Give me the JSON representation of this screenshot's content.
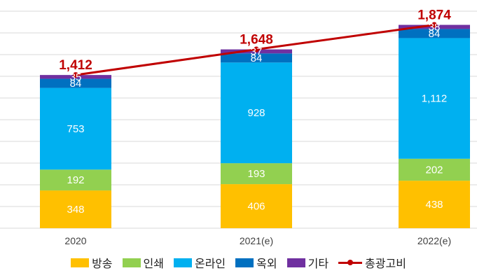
{
  "chart_data": {
    "type": "bar",
    "stacked": true,
    "categories": [
      "2020",
      "2021(e)",
      "2022(e)"
    ],
    "series": [
      {
        "name": "방송",
        "values": [
          348,
          406,
          438
        ],
        "color": "#FFC000"
      },
      {
        "name": "인쇄",
        "values": [
          192,
          193,
          202
        ],
        "color": "#92D050"
      },
      {
        "name": "온라인",
        "values": [
          753,
          928,
          1112
        ],
        "color": "#00B0F0"
      },
      {
        "name": "옥외",
        "values": [
          84,
          84,
          84
        ],
        "color": "#0070C0"
      },
      {
        "name": "기타",
        "values": [
          35,
          37,
          38
        ],
        "color": "#7030A0"
      }
    ],
    "segment_labels": [
      [
        "348",
        "192",
        "753",
        "84",
        "35"
      ],
      [
        "406",
        "193",
        "928",
        "84",
        "37"
      ],
      [
        "438",
        "202",
        "1,112",
        "84",
        "38"
      ]
    ],
    "line": {
      "name": "총광고비",
      "values": [
        1412,
        1648,
        1874
      ],
      "labels": [
        "1,412",
        "1,648",
        "1,874"
      ],
      "color": "#C00000"
    },
    "ylim": [
      0,
      2000
    ],
    "grid": true,
    "legend_position": "bottom"
  }
}
